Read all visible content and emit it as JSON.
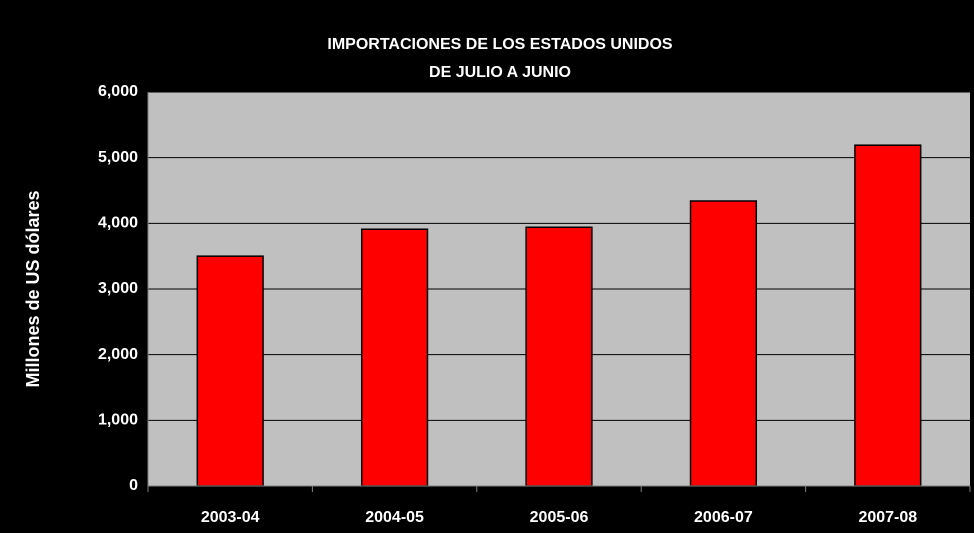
{
  "chart_data": {
    "type": "bar",
    "title": "IMPORTACIONES DE LOS ESTADOS UNIDOS",
    "subtitle": "DE JULIO A JUNIO",
    "y_label": "Millones de US dólares",
    "categories": [
      "2003-04",
      "2004-05",
      "2005-06",
      "2006-07",
      "2007-08"
    ],
    "values": [
      3500,
      3910,
      3940,
      4340,
      5190
    ],
    "color": "#ff0000",
    "ylim": [
      0,
      6000
    ],
    "yticks": [
      0,
      {
        "value": 1000,
        "label": "1,000"
      },
      {
        "value": 2000,
        "label": "2,000"
      },
      {
        "value": 3000,
        "label": "3,000"
      },
      {
        "value": 4000,
        "label": "4,000"
      },
      {
        "value": 5000,
        "label": "5,000"
      },
      {
        "value": 6000,
        "label": "6,000"
      }
    ],
    "grid": true
  }
}
